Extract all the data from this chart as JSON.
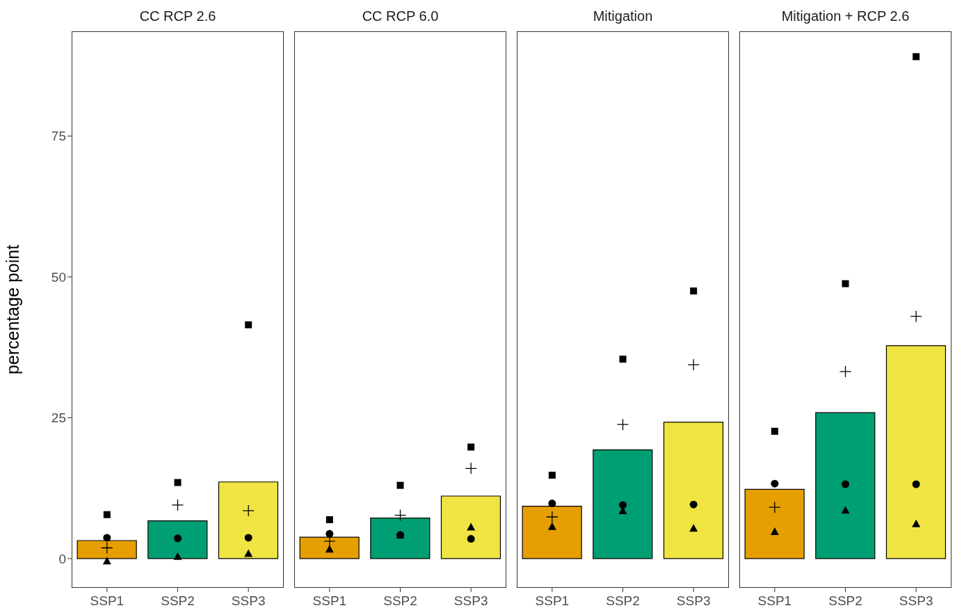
{
  "chart_data": [
    {
      "type": "bar",
      "title": "CC RCP 2.6",
      "ylabel": "percentage point",
      "categories": [
        "SSP1",
        "SSP2",
        "SSP3"
      ],
      "ylim": [
        -5.2,
        93.6
      ],
      "yticks": [
        0,
        25,
        50,
        75
      ],
      "grid": false,
      "legend": false,
      "series": [
        {
          "values": [
            3.2,
            6.7,
            13.6
          ],
          "colors": [
            "#e69f00",
            "#009e73",
            "#f0e442"
          ]
        },
        {
          "type": "scatter",
          "marker": "square",
          "color": "#000000",
          "values": [
            7.8,
            13.5,
            41.5
          ]
        },
        {
          "type": "scatter",
          "marker": "cross",
          "color": "#000000",
          "values": [
            1.9,
            9.5,
            8.5
          ]
        },
        {
          "type": "scatter",
          "marker": "circle",
          "color": "#000000",
          "values": [
            3.7,
            3.6,
            3.7
          ]
        },
        {
          "type": "scatter",
          "marker": "triangle",
          "color": "#000000",
          "values": [
            -0.4,
            0.4,
            0.9
          ]
        }
      ]
    },
    {
      "type": "bar",
      "title": "CC RCP 6.0",
      "categories": [
        "SSP1",
        "SSP2",
        "SSP3"
      ],
      "ylim": [
        -5.2,
        93.6
      ],
      "yticks": [
        0,
        25,
        50,
        75
      ],
      "tick_labels": "x",
      "grid": false,
      "legend": false,
      "series": [
        {
          "values": [
            3.8,
            7.2,
            11.1
          ],
          "colors": [
            "#e69f00",
            "#009e73",
            "#f0e442"
          ]
        },
        {
          "type": "scatter",
          "marker": "square",
          "color": "#000000",
          "values": [
            6.9,
            13.0,
            19.8
          ]
        },
        {
          "type": "scatter",
          "marker": "cross",
          "color": "#000000",
          "values": [
            3.1,
            7.7,
            16.0
          ]
        },
        {
          "type": "scatter",
          "marker": "circle",
          "color": "#000000",
          "values": [
            4.4,
            4.2,
            3.5
          ]
        },
        {
          "type": "scatter",
          "marker": "triangle",
          "color": "#000000",
          "values": [
            1.7,
            4.2,
            5.6
          ]
        }
      ]
    },
    {
      "type": "bar",
      "title": "Mitigation",
      "categories": [
        "SSP1",
        "SSP2",
        "SSP3"
      ],
      "ylim": [
        -5.2,
        93.6
      ],
      "yticks": [
        0,
        25,
        50,
        75
      ],
      "tick_labels": "x",
      "grid": false,
      "legend": false,
      "series": [
        {
          "values": [
            9.3,
            19.3,
            24.2
          ],
          "colors": [
            "#e69f00",
            "#009e73",
            "#f0e442"
          ]
        },
        {
          "type": "scatter",
          "marker": "square",
          "color": "#000000",
          "values": [
            14.8,
            35.4,
            47.5
          ]
        },
        {
          "type": "scatter",
          "marker": "cross",
          "color": "#000000",
          "values": [
            7.4,
            23.8,
            34.4
          ]
        },
        {
          "type": "scatter",
          "marker": "circle",
          "color": "#000000",
          "values": [
            9.8,
            9.5,
            9.6
          ]
        },
        {
          "type": "scatter",
          "marker": "triangle",
          "color": "#000000",
          "values": [
            5.7,
            8.5,
            5.4
          ]
        }
      ]
    },
    {
      "type": "bar",
      "title": "Mitigation + RCP 2.6",
      "categories": [
        "SSP1",
        "SSP2",
        "SSP3"
      ],
      "ylim": [
        -5.2,
        93.6
      ],
      "yticks": [
        0,
        25,
        50,
        75
      ],
      "tick_labels": "x",
      "grid": false,
      "legend": false,
      "series": [
        {
          "values": [
            12.3,
            25.9,
            37.8
          ],
          "colors": [
            "#e69f00",
            "#009e73",
            "#f0e442"
          ]
        },
        {
          "type": "scatter",
          "marker": "square",
          "color": "#000000",
          "values": [
            22.6,
            48.8,
            89.1
          ]
        },
        {
          "type": "scatter",
          "marker": "cross",
          "color": "#000000",
          "values": [
            9.1,
            33.2,
            43.0
          ]
        },
        {
          "type": "scatter",
          "marker": "circle",
          "color": "#000000",
          "values": [
            13.3,
            13.2,
            13.2
          ]
        },
        {
          "type": "scatter",
          "marker": "triangle",
          "color": "#000000",
          "values": [
            4.8,
            8.6,
            6.2
          ]
        }
      ]
    }
  ]
}
